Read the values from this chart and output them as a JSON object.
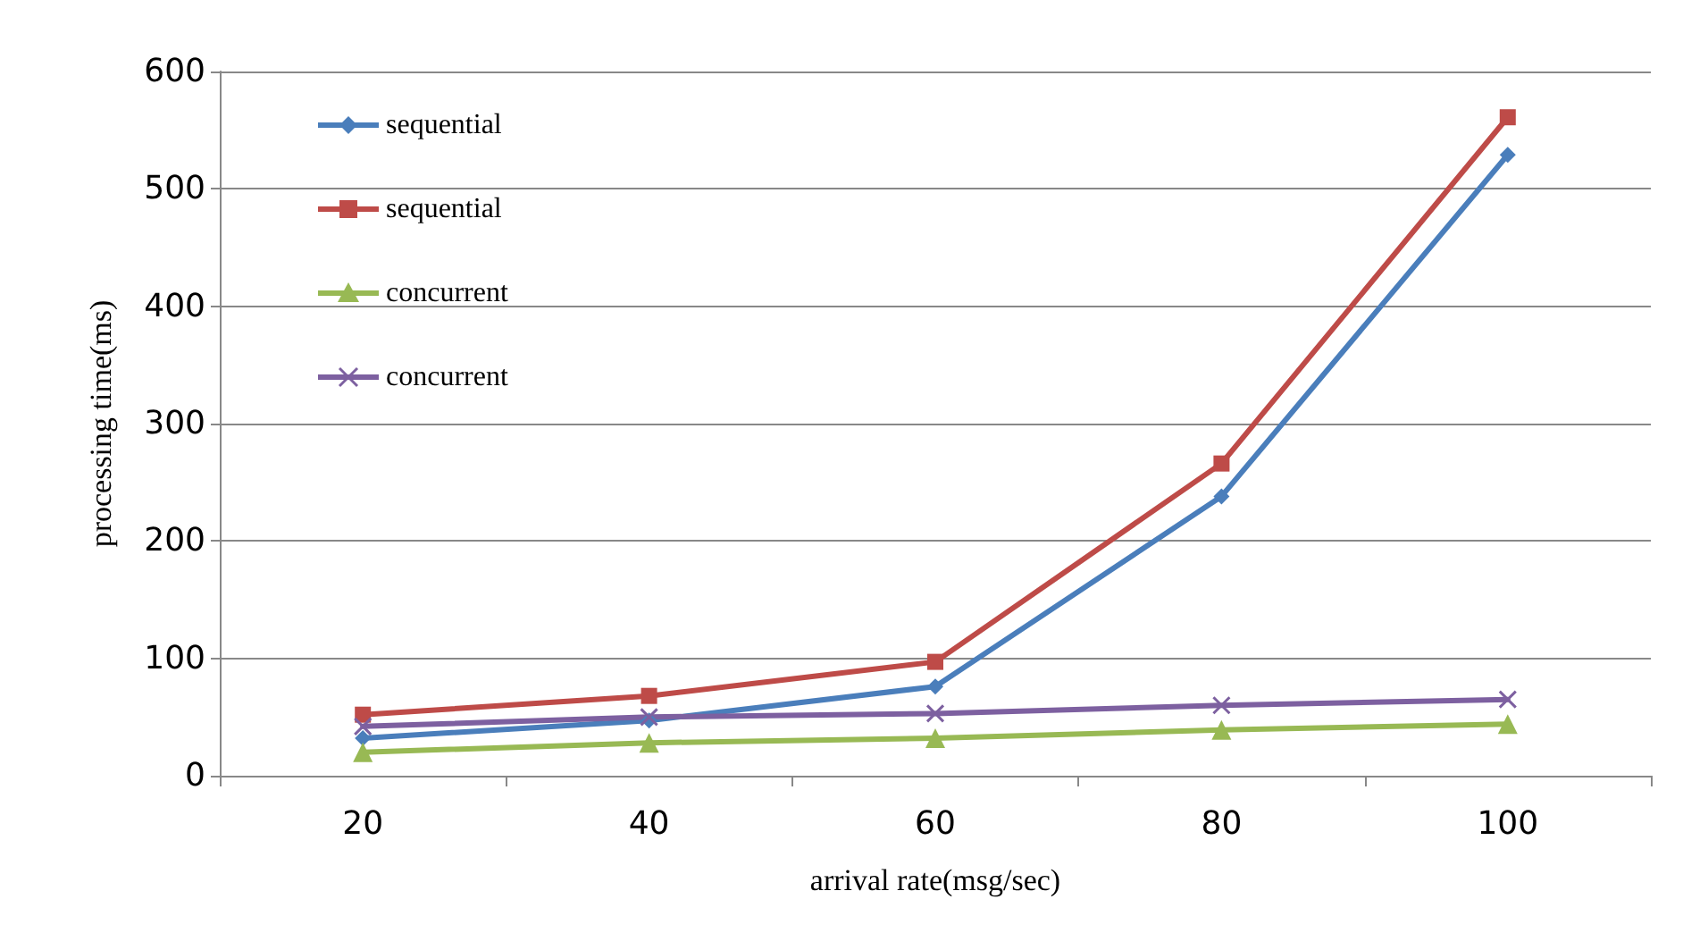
{
  "chart_data": {
    "type": "line",
    "xlabel": "arrival rate(msg/sec)",
    "ylabel": "processing time(ms)",
    "categories": [
      "20",
      "40",
      "60",
      "80",
      "100"
    ],
    "series": [
      {
        "name": "sequential",
        "color": "#4a7ebb",
        "marker": "diamond",
        "values": [
          32,
          47,
          76,
          238,
          529
        ]
      },
      {
        "name": "sequential",
        "color": "#be4b48",
        "marker": "square",
        "values": [
          52,
          68,
          97,
          266,
          561
        ]
      },
      {
        "name": "concurrent",
        "color": "#98b954",
        "marker": "triangle",
        "values": [
          20,
          28,
          32,
          39,
          44
        ]
      },
      {
        "name": "concurrent",
        "color": "#7d60a0",
        "marker": "cross",
        "values": [
          42,
          50,
          53,
          60,
          65
        ]
      }
    ],
    "ylim": [
      0,
      600
    ],
    "yticks": [
      0,
      100,
      200,
      300,
      400,
      500,
      600
    ],
    "grid": "y",
    "legend": "top left",
    "line_style": "solid"
  }
}
